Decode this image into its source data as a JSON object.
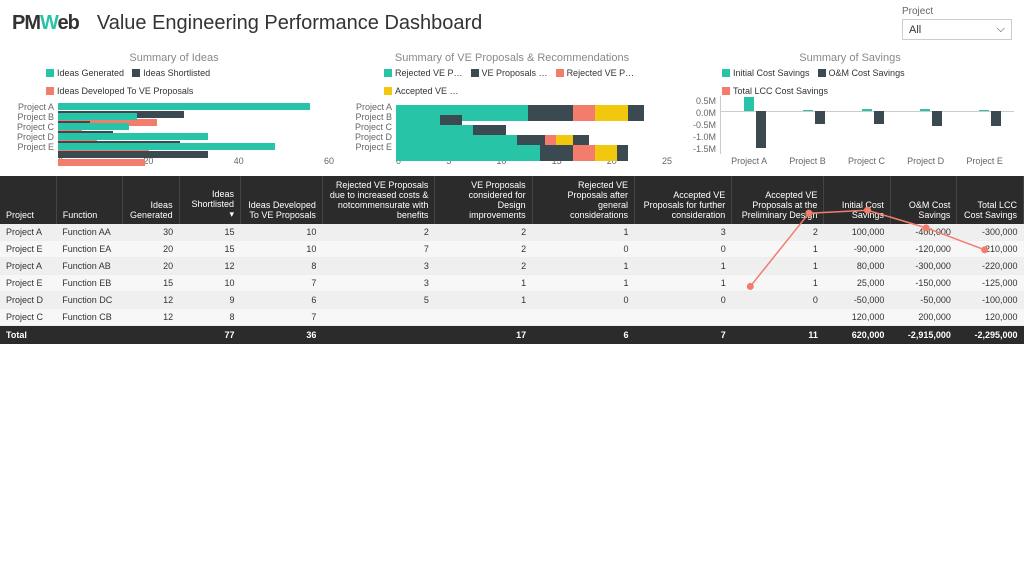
{
  "header": {
    "logo_pre": "PM",
    "logo_w": "W",
    "logo_post": "eb",
    "title": "Value Engineering Performance Dashboard",
    "project_label": "Project",
    "project_value": "All"
  },
  "colors": {
    "teal": "#28c4a8",
    "dark": "#3b4a50",
    "salmon": "#f47c6c",
    "yellow": "#f2c80f",
    "grid": "#cccccc",
    "text_muted": "#888888"
  },
  "chart_ideas": {
    "title": "Summary of Ideas",
    "legend": [
      "Ideas Generated",
      "Ideas Shortlisted",
      "Ideas Developed To VE Proposals"
    ],
    "legend_colors": [
      "#28c4a8",
      "#3b4a50",
      "#f47c6c"
    ],
    "categories": [
      "Project A",
      "Project B",
      "Project C",
      "Project D",
      "Project E"
    ],
    "series": [
      [
        64,
        20,
        18,
        38,
        55
      ],
      [
        32,
        8,
        14,
        31,
        38
      ],
      [
        25,
        6,
        10,
        23,
        22
      ]
    ],
    "x_ticks": [
      "0",
      "20",
      "40",
      "60"
    ],
    "x_max": 70
  },
  "chart_proposals": {
    "title": "Summary of VE Proposals & Recommendations",
    "legend": [
      "Rejected VE P…",
      "VE Proposals …",
      "Rejected VE P…",
      "Accepted VE …"
    ],
    "legend_colors": [
      "#28c4a8",
      "#3b4a50",
      "#f47c6c",
      "#f2c80f"
    ],
    "categories": [
      "Project A",
      "Project B",
      "Project C",
      "Project D",
      "Project E"
    ],
    "stacks": [
      [
        12,
        4,
        2,
        3,
        1.5
      ],
      [
        4,
        2,
        0,
        0,
        0
      ],
      [
        7,
        3,
        0,
        0,
        0
      ],
      [
        11,
        2.5,
        1,
        1.5,
        1.5
      ],
      [
        13,
        3,
        2,
        2,
        1
      ]
    ],
    "x_ticks": [
      "0",
      "5",
      "10",
      "15",
      "20",
      "25"
    ],
    "x_max": 25
  },
  "chart_savings": {
    "title": "Summary of Savings",
    "legend": [
      "Initial Cost Savings",
      "O&M Cost Savings",
      "Total LCC Cost Savings"
    ],
    "legend_colors": [
      "#28c4a8",
      "#3b4a50",
      "#f47c6c"
    ],
    "categories": [
      "Project A",
      "Project B",
      "Project C",
      "Project D",
      "Project E"
    ],
    "y_ticks": [
      "0.5M",
      "0.0M",
      "-0.5M",
      "-1.0M",
      "-1.5M"
    ],
    "y_min": -1.5,
    "y_max": 0.5,
    "initial": [
      0.45,
      0.02,
      0.05,
      0.04,
      0.03
    ],
    "om": [
      -1.3,
      -0.48,
      -0.45,
      -0.55,
      -0.55
    ],
    "lcc": [
      -0.8,
      -0.3,
      -0.28,
      -0.4,
      -0.55
    ]
  },
  "table": {
    "columns": [
      "Project",
      "Function",
      "Ideas Generated",
      "Ideas Shortlisted",
      "Ideas Developed To VE Proposals",
      "Rejected VE Proposals due to increased costs & notcommensurate with benefits",
      "VE Proposals considered for Design improvements",
      "Rejected VE Proposals after general considerations",
      "Accepted VE Proposals for further consideration",
      "Accepted VE Proposals at the Preliminary Design",
      "Initial Cost Savings",
      "O&M Cost Savings",
      "Total LCC Cost Savings"
    ],
    "sort_col": 3,
    "rows": [
      [
        "Project A",
        "Function AA",
        "30",
        "15",
        "10",
        "2",
        "2",
        "1",
        "3",
        "2",
        "100,000",
        "-400,000",
        "-300,000"
      ],
      [
        "Project E",
        "Function EA",
        "20",
        "15",
        "10",
        "7",
        "2",
        "0",
        "0",
        "1",
        "-90,000",
        "-120,000",
        "-210,000"
      ],
      [
        "Project A",
        "Function AB",
        "20",
        "12",
        "8",
        "3",
        "2",
        "1",
        "1",
        "1",
        "80,000",
        "-300,000",
        "-220,000"
      ],
      [
        "Project E",
        "Function EB",
        "15",
        "10",
        "7",
        "3",
        "1",
        "1",
        "1",
        "1",
        "25,000",
        "-150,000",
        "-125,000"
      ],
      [
        "Project D",
        "Function DC",
        "12",
        "9",
        "6",
        "5",
        "1",
        "0",
        "0",
        "0",
        "-50,000",
        "-50,000",
        "-100,000"
      ],
      [
        "Project C",
        "Function CB",
        "12",
        "8",
        "7",
        "",
        "",
        "",
        "",
        "",
        "120,000",
        "200,000",
        "120,000"
      ]
    ],
    "total": [
      "Total",
      "",
      "",
      "77",
      "36",
      "",
      "17",
      "6",
      "7",
      "11",
      "620,000",
      "-2,915,000",
      "-2,295,000"
    ]
  }
}
